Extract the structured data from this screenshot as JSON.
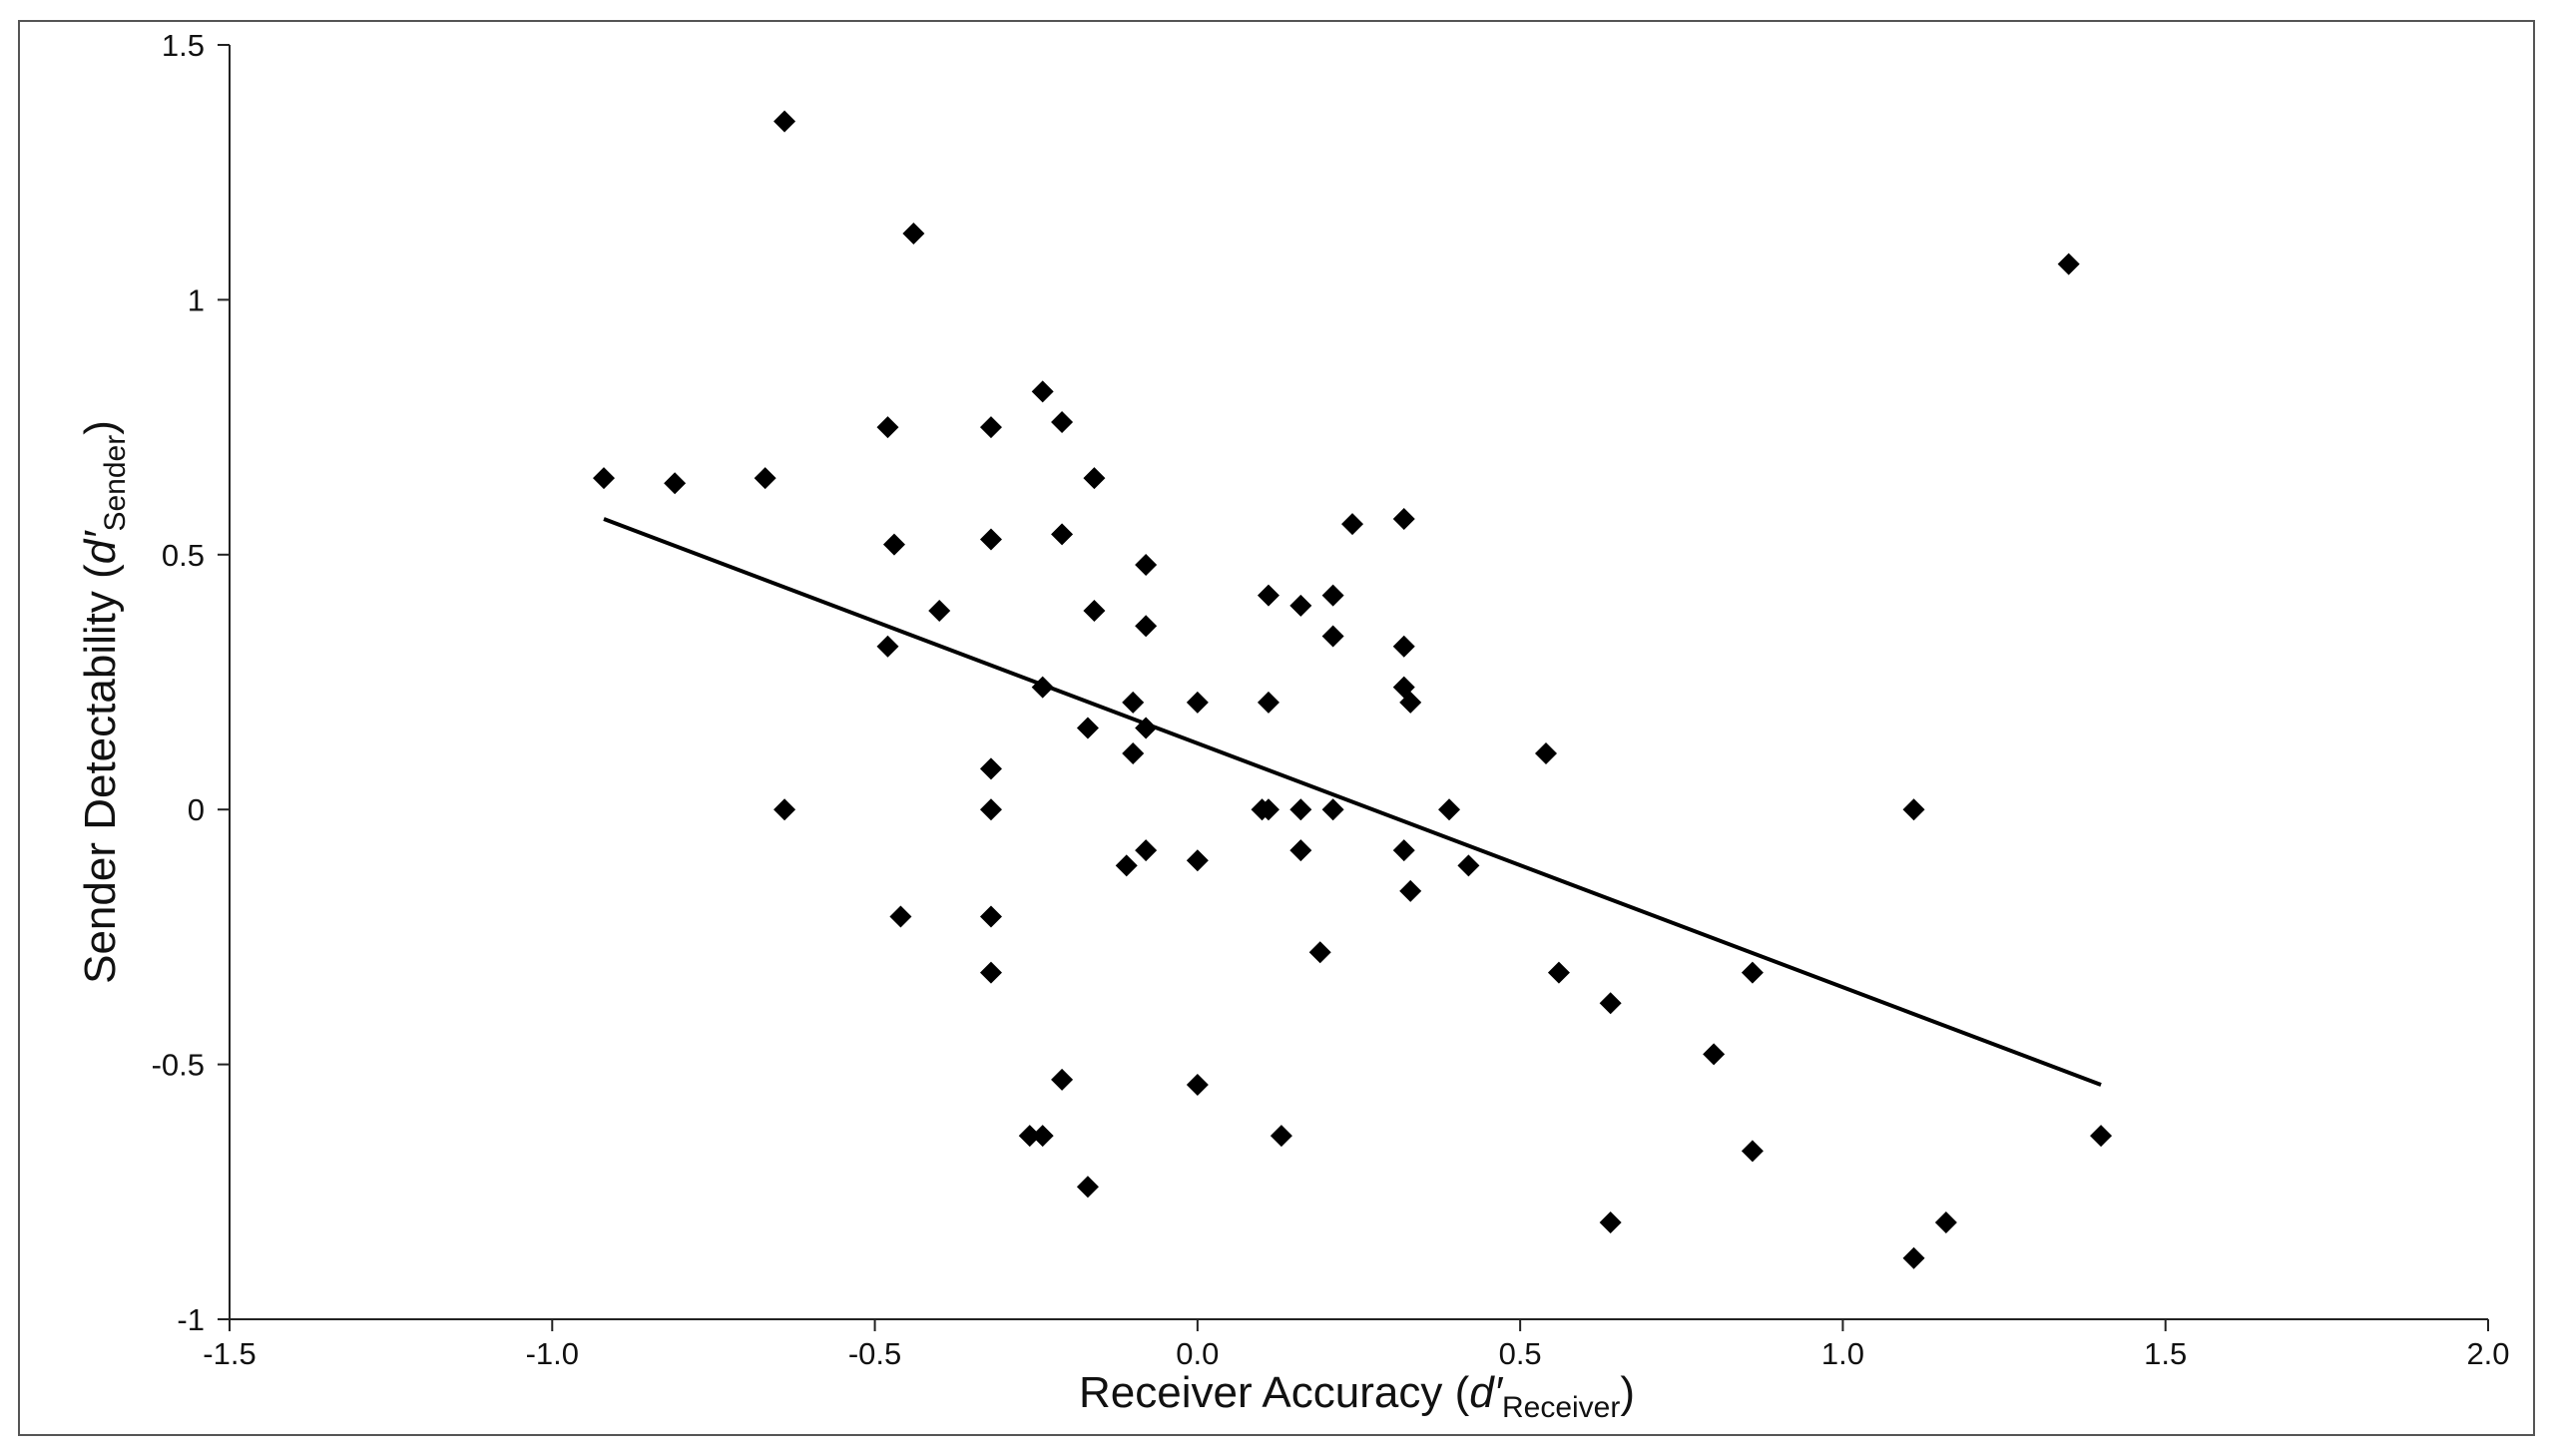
{
  "chart_data": {
    "type": "scatter",
    "title": "",
    "xlabel": {
      "prefix": "Receiver Accuracy (",
      "symbol": "d′",
      "subscript": "Receiver",
      "suffix": ")"
    },
    "ylabel": {
      "prefix": "Sender Detectability (",
      "symbol": "d′",
      "subscript": "Sender",
      "suffix": ")"
    },
    "xlim": [
      -1.5,
      2.0
    ],
    "ylim": [
      -1.0,
      1.5
    ],
    "xticks": [
      "-1.5",
      "-1.0",
      "-0.5",
      "0.0",
      "0.5",
      "1.0",
      "1.5",
      "2.0"
    ],
    "yticks": [
      "-1",
      "-0.5",
      "0",
      "0.5",
      "1",
      "1.5"
    ],
    "grid": false,
    "legend": "none",
    "marker": "diamond",
    "marker_color": "#000000",
    "trendline": {
      "x": [
        -0.92,
        1.4
      ],
      "y": [
        0.57,
        -0.54
      ]
    },
    "points": [
      {
        "x": -0.64,
        "y": 1.35
      },
      {
        "x": -0.44,
        "y": 1.13
      },
      {
        "x": 1.35,
        "y": 1.07
      },
      {
        "x": -0.24,
        "y": 0.82
      },
      {
        "x": -0.21,
        "y": 0.76
      },
      {
        "x": -0.48,
        "y": 0.75
      },
      {
        "x": -0.32,
        "y": 0.75
      },
      {
        "x": -0.92,
        "y": 0.65
      },
      {
        "x": -0.81,
        "y": 0.64
      },
      {
        "x": -0.67,
        "y": 0.65
      },
      {
        "x": -0.16,
        "y": 0.65
      },
      {
        "x": 0.32,
        "y": 0.57
      },
      {
        "x": 0.24,
        "y": 0.56
      },
      {
        "x": -0.21,
        "y": 0.54
      },
      {
        "x": -0.32,
        "y": 0.53
      },
      {
        "x": -0.47,
        "y": 0.52
      },
      {
        "x": -0.08,
        "y": 0.48
      },
      {
        "x": 0.11,
        "y": 0.42
      },
      {
        "x": 0.21,
        "y": 0.42
      },
      {
        "x": 0.16,
        "y": 0.4
      },
      {
        "x": -0.4,
        "y": 0.39
      },
      {
        "x": -0.16,
        "y": 0.39
      },
      {
        "x": -0.08,
        "y": 0.36
      },
      {
        "x": 0.21,
        "y": 0.34
      },
      {
        "x": -0.48,
        "y": 0.32
      },
      {
        "x": 0.32,
        "y": 0.32
      },
      {
        "x": -0.24,
        "y": 0.24
      },
      {
        "x": 0.32,
        "y": 0.24
      },
      {
        "x": -0.1,
        "y": 0.21
      },
      {
        "x": 0.0,
        "y": 0.21
      },
      {
        "x": 0.11,
        "y": 0.21
      },
      {
        "x": 0.33,
        "y": 0.21
      },
      {
        "x": -0.17,
        "y": 0.16
      },
      {
        "x": -0.08,
        "y": 0.16
      },
      {
        "x": -0.1,
        "y": 0.11
      },
      {
        "x": 0.54,
        "y": 0.11
      },
      {
        "x": -0.32,
        "y": 0.08
      },
      {
        "x": -0.64,
        "y": 0.0
      },
      {
        "x": -0.32,
        "y": 0.0
      },
      {
        "x": 0.1,
        "y": 0.0
      },
      {
        "x": 0.11,
        "y": 0.0
      },
      {
        "x": 0.16,
        "y": 0.0
      },
      {
        "x": 0.21,
        "y": 0.0
      },
      {
        "x": 0.39,
        "y": 0.0
      },
      {
        "x": 1.11,
        "y": 0.0
      },
      {
        "x": -0.08,
        "y": -0.08
      },
      {
        "x": 0.16,
        "y": -0.08
      },
      {
        "x": 0.32,
        "y": -0.08
      },
      {
        "x": -0.11,
        "y": -0.11
      },
      {
        "x": 0.0,
        "y": -0.1
      },
      {
        "x": 0.42,
        "y": -0.11
      },
      {
        "x": 0.33,
        "y": -0.16
      },
      {
        "x": -0.46,
        "y": -0.21
      },
      {
        "x": -0.32,
        "y": -0.21
      },
      {
        "x": 0.19,
        "y": -0.28
      },
      {
        "x": -0.32,
        "y": -0.32
      },
      {
        "x": 0.56,
        "y": -0.32
      },
      {
        "x": 0.86,
        "y": -0.32
      },
      {
        "x": 0.64,
        "y": -0.38
      },
      {
        "x": 0.8,
        "y": -0.48
      },
      {
        "x": -0.21,
        "y": -0.53
      },
      {
        "x": 0.0,
        "y": -0.54
      },
      {
        "x": -0.26,
        "y": -0.64
      },
      {
        "x": -0.24,
        "y": -0.64
      },
      {
        "x": 0.13,
        "y": -0.64
      },
      {
        "x": 1.4,
        "y": -0.64
      },
      {
        "x": 0.86,
        "y": -0.67
      },
      {
        "x": -0.17,
        "y": -0.74
      },
      {
        "x": 0.64,
        "y": -0.81
      },
      {
        "x": 1.16,
        "y": -0.81
      },
      {
        "x": 1.11,
        "y": -0.88
      }
    ]
  }
}
